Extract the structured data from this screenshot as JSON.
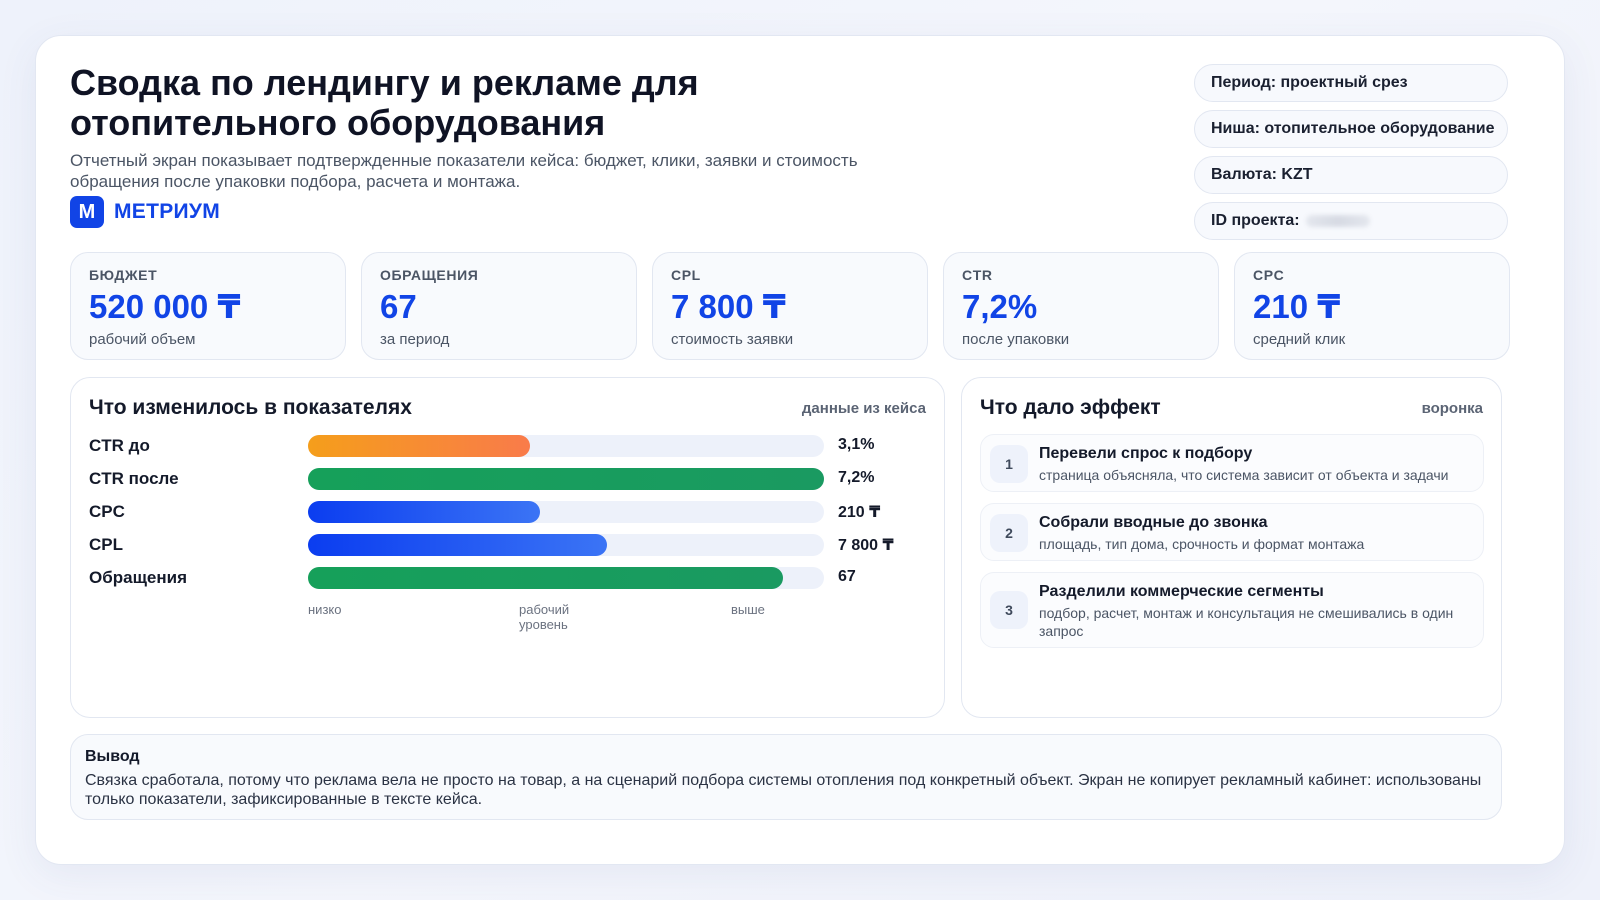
{
  "header": {
    "title": "Сводка по лендингу и рекламе для отопительного оборудования",
    "subtitle": "Отчетный экран показывает подтвержденные показатели кейса: бюджет, клики, заявки и стоимость обращения после упаковки подбора, расчета и монтажа.",
    "brand_letter": "M",
    "brand_name": "МЕТРИУМ"
  },
  "meta_pills": [
    {
      "label": "Период: проектный срез"
    },
    {
      "label": "Ниша: отопительное оборудование"
    },
    {
      "label": "Валюта: KZT"
    },
    {
      "label": "ID проекта:"
    }
  ],
  "kpis": [
    {
      "label": "БЮДЖЕТ",
      "value": "520 000 ₸",
      "note": "рабочий объем"
    },
    {
      "label": "ОБРАЩЕНИЯ",
      "value": "67",
      "note": "за период"
    },
    {
      "label": "CPL",
      "value": "7 800 ₸",
      "note": "стоимость заявки"
    },
    {
      "label": "CTR",
      "value": "7,2%",
      "note": "после упаковки"
    },
    {
      "label": "CPC",
      "value": "210 ₸",
      "note": "средний клик"
    }
  ],
  "changes_panel": {
    "title": "Что изменилось в показателях",
    "tag": "данные из кейса",
    "scale": {
      "low": "низко",
      "mid": "рабочий уровень",
      "high": "выше"
    },
    "bars": [
      {
        "label": "CTR до",
        "value": "3,1%",
        "level": 0.43,
        "color_from": "#f59e1b",
        "color_to": "#f97b4a"
      },
      {
        "label": "CTR после",
        "value": "7,2%",
        "level": 1.0,
        "color_from": "#16a05a",
        "color_to": "#1a9a61"
      },
      {
        "label": "CPC",
        "value": "210 ₸",
        "level": 0.45,
        "color_from": "#0b3df0",
        "color_to": "#3b74f5"
      },
      {
        "label": "CPL",
        "value": "7 800 ₸",
        "level": 0.58,
        "color_from": "#0b3df0",
        "color_to": "#3b74f5"
      },
      {
        "label": "Обращения",
        "value": "67",
        "level": 0.92,
        "color_from": "#16a05a",
        "color_to": "#1a9a61"
      }
    ]
  },
  "effect_panel": {
    "title": "Что дало эффект",
    "tag": "воронка",
    "steps": [
      {
        "num": "1",
        "title": "Перевели спрос к подбору",
        "text": "страница объясняла, что система зависит от объекта и задачи"
      },
      {
        "num": "2",
        "title": "Собрали вводные до звонка",
        "text": "площадь, тип дома, срочность и формат монтажа"
      },
      {
        "num": "3",
        "title": "Разделили коммерческие сегменты",
        "text": "подбор, расчет, монтаж и консультация не смешивались в один запрос"
      }
    ]
  },
  "conclusion": {
    "title": "Вывод",
    "text": "Связка сработала, потому что реклама вела не просто на товар, а на сценарий подбора системы отопления под конкретный объект. Экран не копирует рекламный кабинет: использованы только показатели, зафиксированные в тексте кейса."
  },
  "colors": {
    "accent": "#1144e6",
    "track": "#edf1fa"
  }
}
